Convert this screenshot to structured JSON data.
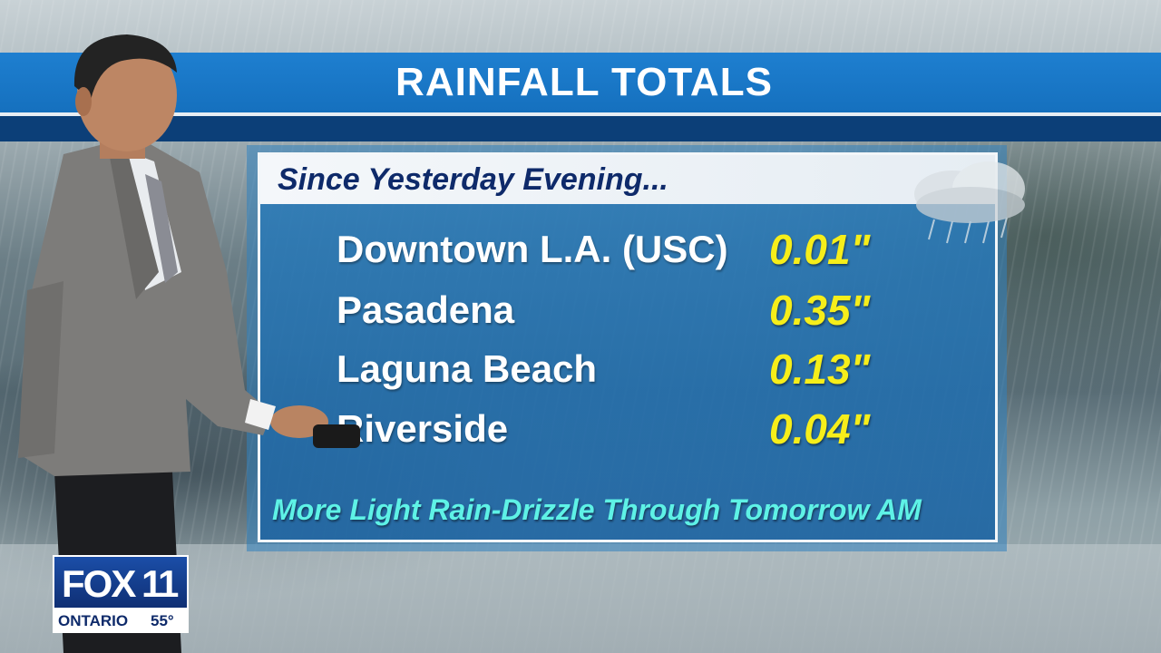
{
  "title": "RAINFALL TOTALS",
  "subtitle": "Since Yesterday Evening...",
  "rows": [
    {
      "location": "Downtown L.A. (USC)",
      "amount": "0.01\""
    },
    {
      "location": "Pasadena",
      "amount": "0.35\""
    },
    {
      "location": "Laguna Beach",
      "amount": "0.13\""
    },
    {
      "location": "Riverside",
      "amount": "0.04\""
    }
  ],
  "footer": "More Light Rain-Drizzle Through Tomorrow AM",
  "logo": {
    "network": "FOX",
    "channel": "11",
    "city": "ONTARIO",
    "temperature": "55°"
  },
  "colors": {
    "title_bar": "#1570be",
    "amount": "#f6ee1a",
    "footer": "#5ef2e6",
    "subtitle": "#0e2a6a"
  },
  "icons": [
    "rain-cloud-icon"
  ]
}
